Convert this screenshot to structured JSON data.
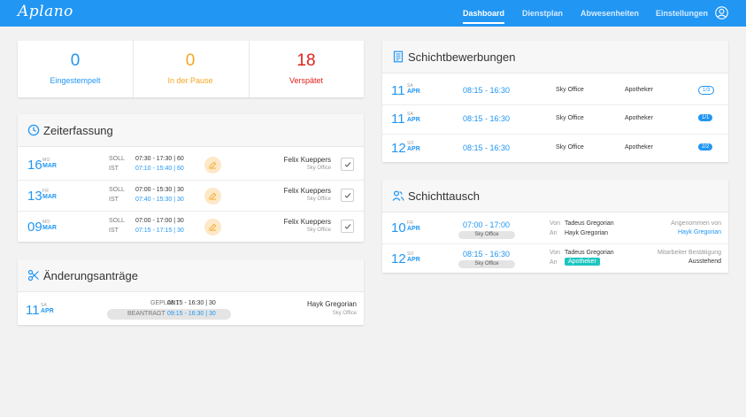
{
  "app": {
    "logo": "Aplano"
  },
  "nav": {
    "items": [
      "Dashboard",
      "Dienstplan",
      "Abwesenheiten",
      "Einstellungen"
    ]
  },
  "stats": [
    {
      "value": "0",
      "label": "Eingestempelt",
      "color": "#2196f3"
    },
    {
      "value": "0",
      "label": "In der Pause",
      "color": "#f5a623"
    },
    {
      "value": "18",
      "label": "Verspätet",
      "color": "#e0201b"
    }
  ],
  "zeiterfassung": {
    "title": "Zeiterfassung",
    "soll_label": "SOLL",
    "ist_label": "IST",
    "rows": [
      {
        "day": "16",
        "weekday": "MO",
        "month": "MAR",
        "soll": "07:30 - 17:30 | 60",
        "ist": "07:10 - 15:40 | 60",
        "name": "Felix Kueppers",
        "location": "Sky Office"
      },
      {
        "day": "13",
        "weekday": "FR",
        "month": "MAR",
        "soll": "07:00 - 15:30 | 30",
        "ist": "07:40 - 15:30 | 30",
        "name": "Felix Kueppers",
        "location": "Sky Office"
      },
      {
        "day": "09",
        "weekday": "MO",
        "month": "MAR",
        "soll": "07:00 - 17:00 | 30",
        "ist": "07:15 - 17:15 | 30",
        "name": "Felix Kueppers",
        "location": "Sky Office"
      }
    ]
  },
  "aenderung": {
    "title": "Änderungsanträge",
    "row": {
      "day": "11",
      "weekday": "SA",
      "month": "APR",
      "geplant_label": "GEPLANT",
      "geplant": "08:15 - 16:30 | 30",
      "beantragt_label": "BEANTRAGT",
      "beantragt": "09:15 - 16:30 | 30",
      "name": "Hayk Gregorian",
      "location": "Sky Office"
    }
  },
  "bewerbungen": {
    "title": "Schichtbewerbungen",
    "rows": [
      {
        "day": "11",
        "weekday": "SA",
        "month": "APR",
        "time": "08:15 - 16:30",
        "location": "Sky Office",
        "role": "Apotheker",
        "badge": "1/3",
        "filled": false
      },
      {
        "day": "11",
        "weekday": "SA",
        "month": "APR",
        "time": "08:15 - 16:30",
        "location": "Sky Office",
        "role": "Apotheker",
        "badge": "1/1",
        "filled": true
      },
      {
        "day": "12",
        "weekday": "SO",
        "month": "APR",
        "time": "08:15 - 16:30",
        "location": "Sky Office",
        "role": "Apotheker",
        "badge": "2/2",
        "filled": true
      }
    ]
  },
  "tausch": {
    "title": "Schichttausch",
    "von_label": "Von",
    "an_label": "An",
    "rows": [
      {
        "day": "10",
        "weekday": "FR",
        "month": "APR",
        "time": "07:00 - 17:00",
        "location": "Sky Office",
        "von": "Tadeus Gregorian",
        "an": "Hayk Gregorian",
        "status_label": "Angenommen von",
        "status_value": "Hayk Gregorian"
      },
      {
        "day": "12",
        "weekday": "SO",
        "month": "APR",
        "time": "08:15 - 16:30",
        "location": "Sky Office",
        "von": "Tadeus Gregorian",
        "an": "Apotheker",
        "status_label": "Mitarbeiter Bestätigung",
        "status_value": "Ausstehend"
      }
    ]
  }
}
